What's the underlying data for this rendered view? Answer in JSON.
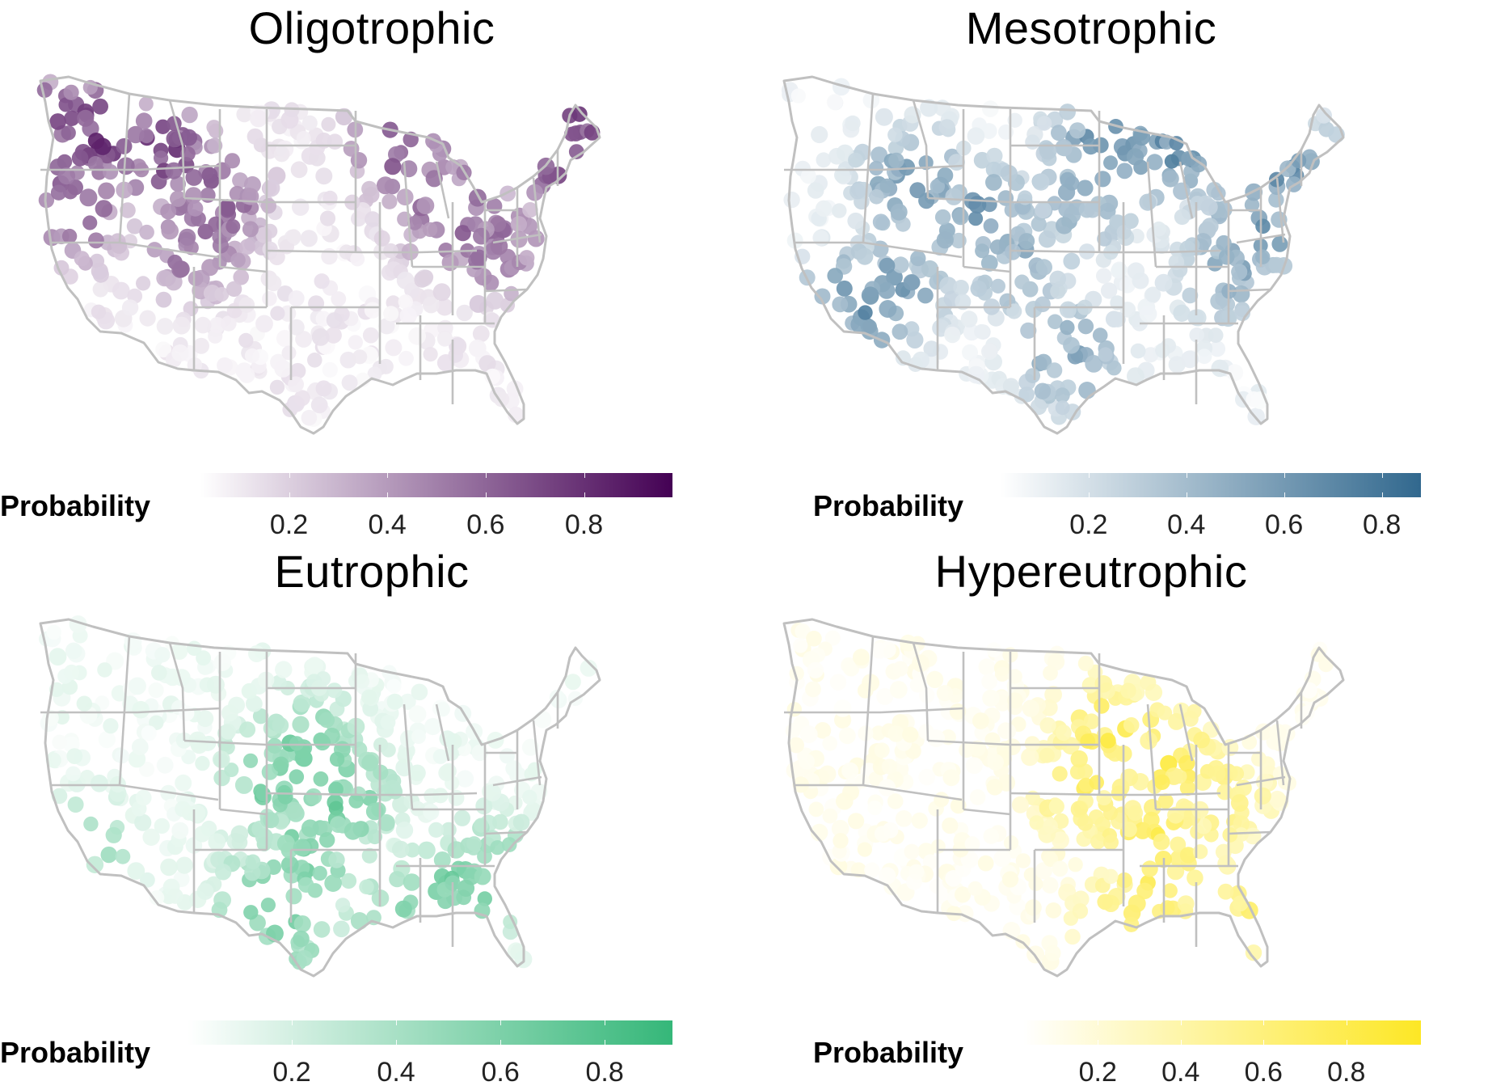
{
  "legend_title": "Probability",
  "panels": [
    {
      "title": "Oligotrophic",
      "color_low": "#ffffff",
      "color_high": "#440154",
      "ticks": [
        "0.2",
        "0.4",
        "0.6",
        "0.8"
      ],
      "tick_values": [
        0.2,
        0.4,
        0.6,
        0.8
      ],
      "range": [
        0.02,
        0.98
      ],
      "hotspot_regions": [
        "northwest",
        "northern-rockies",
        "great-lakes",
        "new-england"
      ]
    },
    {
      "title": "Mesotrophic",
      "color_low": "#ffffff",
      "color_high": "#31688e",
      "ticks": [
        "0.2",
        "0.4",
        "0.6",
        "0.8"
      ],
      "tick_values": [
        0.2,
        0.4,
        0.6,
        0.8
      ],
      "range": [
        0.02,
        0.88
      ],
      "hotspot_regions": [
        "upper-midwest",
        "rockies",
        "northeast",
        "arizona"
      ]
    },
    {
      "title": "Eutrophic",
      "color_low": "#ffffff",
      "color_high": "#35b779",
      "ticks": [
        "0.2",
        "0.4",
        "0.6",
        "0.8"
      ],
      "tick_values": [
        0.2,
        0.4,
        0.6,
        0.8
      ],
      "range": [
        0.0,
        0.93
      ],
      "hotspot_regions": [
        "great-plains",
        "southeast",
        "texas"
      ]
    },
    {
      "title": "Hypereutrophic",
      "color_low": "#ffffff",
      "color_high": "#fde725",
      "ticks": [
        "0.2",
        "0.4",
        "0.6",
        "0.8"
      ],
      "tick_values": [
        0.2,
        0.4,
        0.6,
        0.8
      ],
      "range": [
        0.02,
        0.98
      ],
      "hotspot_regions": [
        "corn-belt",
        "mississippi-valley",
        "florida"
      ]
    }
  ]
}
